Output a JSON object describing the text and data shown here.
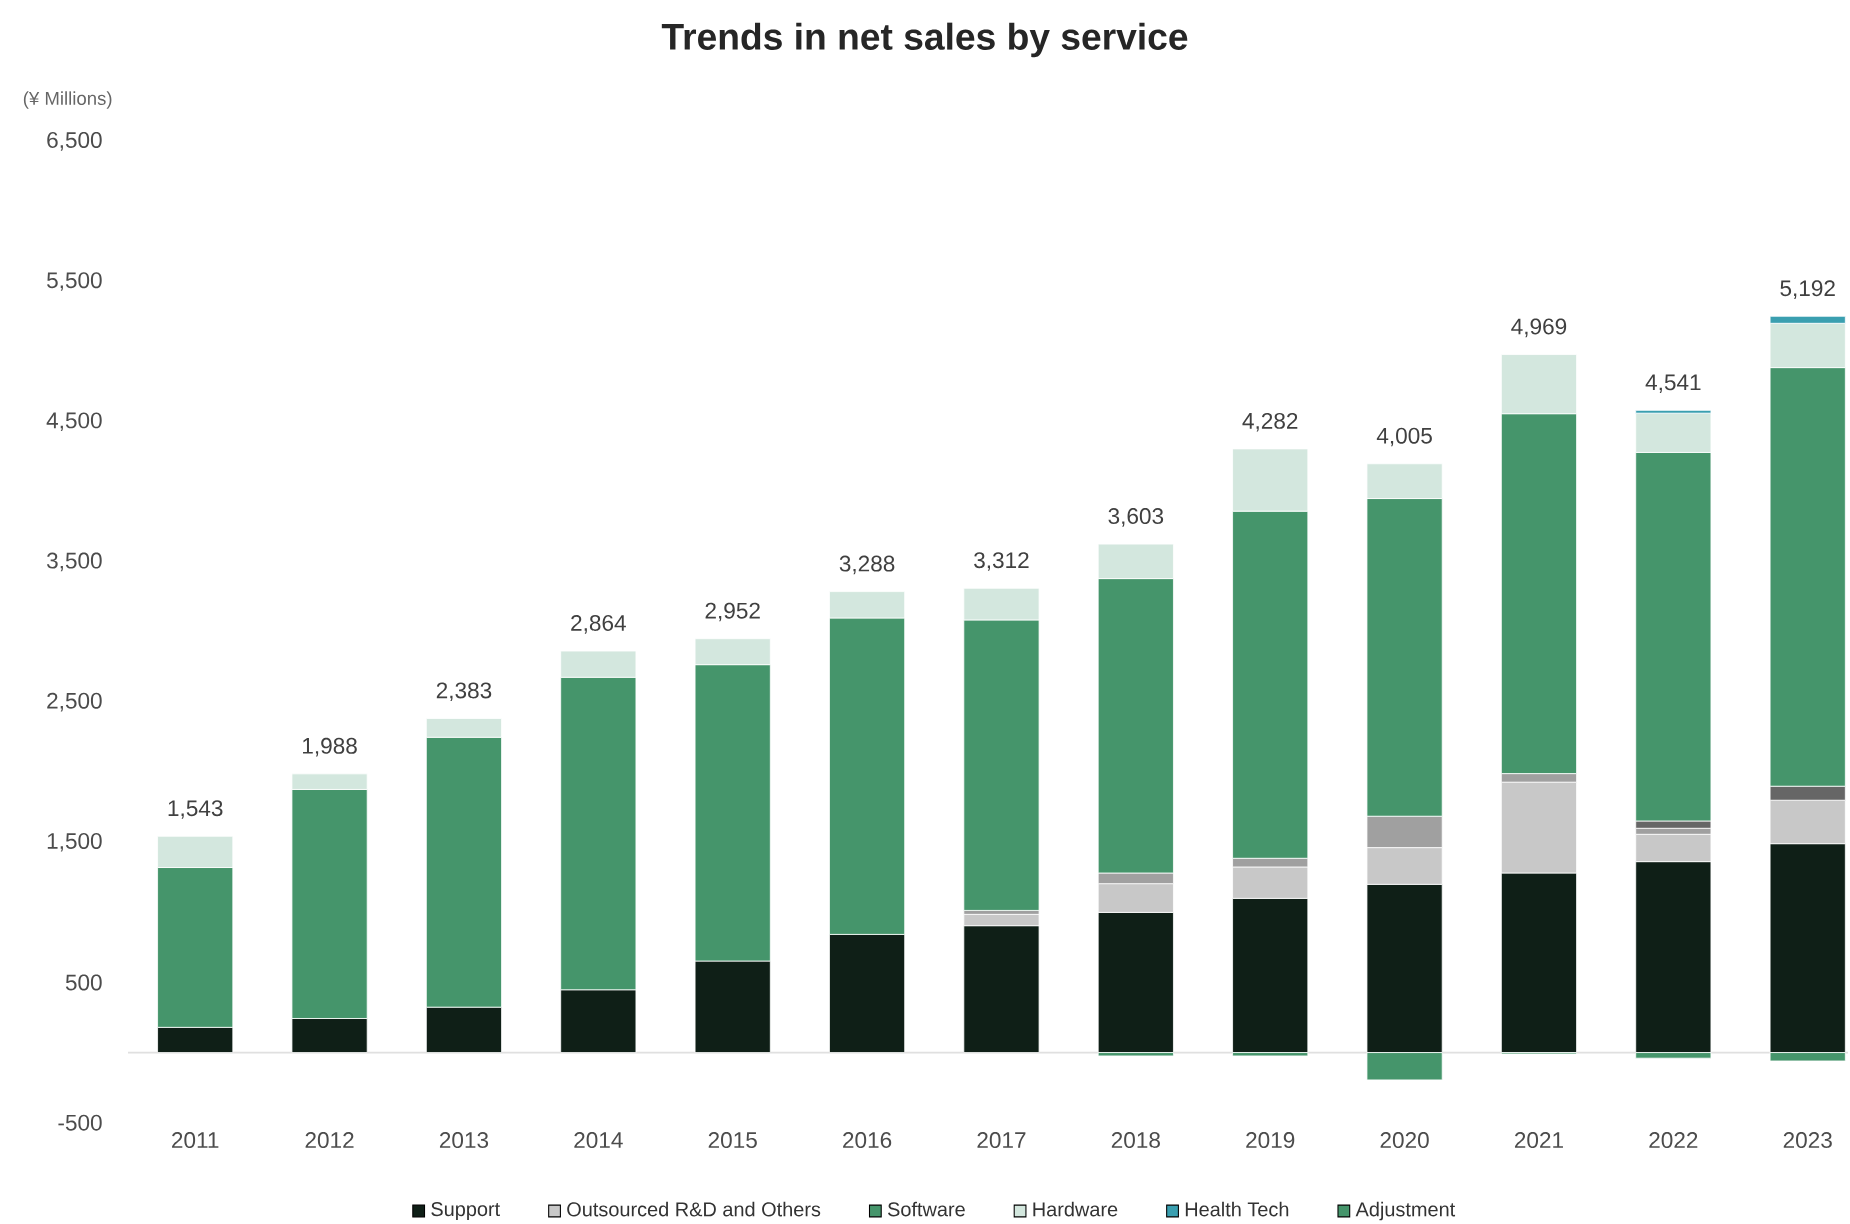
{
  "chart_data": {
    "type": "bar",
    "stacked": true,
    "title": "Trends in net sales by service",
    "ylabel": "(¥ Millions)",
    "categories": [
      "2011",
      "2012",
      "2013",
      "2014",
      "2015",
      "2016",
      "2017",
      "2018",
      "2019",
      "2020",
      "2021",
      "2022",
      "2023"
    ],
    "series": [
      {
        "name": "Support",
        "color": "#0f1f17",
        "values": [
          180,
          243,
          324,
          448,
          653,
          843,
          905,
          1000,
          1100,
          1200,
          1281,
          1362,
          1490
        ]
      },
      {
        "name": "Outsourced R&D and Others",
        "color": "#c8c8c8",
        "values": [
          0,
          0,
          0,
          0,
          0,
          0,
          81,
          205,
          224,
          262,
          648,
          195,
          310
        ]
      },
      {
        "color": "#a0a0a0",
        "values": [
          0,
          0,
          0,
          0,
          0,
          0,
          28,
          76,
          62,
          224,
          61,
          43,
          0
        ]
      },
      {
        "color": "#666666",
        "values": [
          0,
          0,
          0,
          0,
          0,
          0,
          0,
          0,
          0,
          0,
          0,
          52,
          100
        ]
      },
      {
        "name": "Software",
        "color": "#45956b",
        "values": [
          1140,
          1634,
          1925,
          2229,
          2114,
          2257,
          2072,
          2100,
          2476,
          2266,
          2567,
          2629,
          2986
        ]
      },
      {
        "name": "Hardware",
        "color": "#d3e7de",
        "values": [
          223,
          111,
          134,
          187,
          185,
          188,
          226,
          246,
          444,
          248,
          422,
          280,
          316
        ]
      },
      {
        "name": "Health Tech",
        "color": "#3a9fb0",
        "values": [
          0,
          0,
          0,
          0,
          0,
          0,
          0,
          0,
          0,
          0,
          0,
          20,
          50
        ]
      },
      {
        "name": "Adjustment",
        "color": "#45956b",
        "values": [
          0,
          0,
          0,
          0,
          0,
          0,
          0,
          -24,
          -24,
          -195,
          -10,
          -40,
          -60
        ]
      }
    ],
    "totals": [
      "1,543",
      "1,988",
      "2,383",
      "2,864",
      "2,952",
      "3,288",
      "3,312",
      "3,603",
      "4,282",
      "4,005",
      "4,969",
      "4,541",
      "5,192"
    ],
    "ylim": [
      -500,
      6500
    ],
    "yticks": [
      -500,
      {
        "value": 500,
        "label": "500"
      },
      {
        "value": 1500,
        "label": "1,500"
      },
      {
        "value": 2500,
        "label": "2,500"
      },
      {
        "value": 3500,
        "label": "3,500"
      },
      {
        "value": 4500,
        "label": "4,500"
      },
      {
        "value": 5500,
        "label": "5,500"
      },
      {
        "value": 6500,
        "label": "6,500"
      }
    ],
    "legend": "bottom"
  }
}
